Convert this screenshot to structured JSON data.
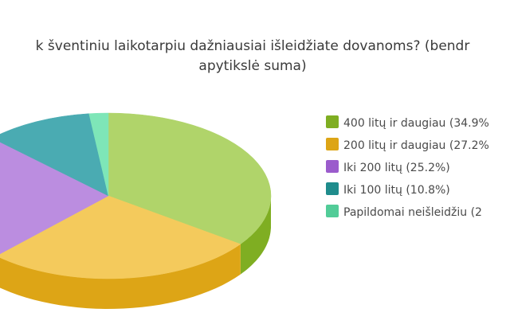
{
  "chart_data": {
    "type": "pie",
    "style": "3d",
    "title_lines": [
      "k šventiniu laikotarpiu dažniausiai išleidžiate dovanoms? (bendr",
      "apytikslė suma)"
    ],
    "legend_position": "right",
    "slices": [
      {
        "label": "400 litų ir daugiau (34.9%",
        "value": 34.9,
        "color": "#7fae22",
        "top": "#b0d46a"
      },
      {
        "label": "200 litų ir daugiau (27.2%",
        "value": 27.2,
        "color": "#dda516",
        "top": "#f4ca5c"
      },
      {
        "label": "Iki 200 litų (25.2%)",
        "value": 25.2,
        "color": "#9b5ccc",
        "top": "#bb8de0"
      },
      {
        "label": "Iki 100 litų (10.8%)",
        "value": 10.8,
        "color": "#1f8c8c",
        "top": "#4aabb2"
      },
      {
        "label": "Papildomai neišleidžiu (2",
        "value": 1.9,
        "color": "#52cc98",
        "top": "#7ee6b8"
      }
    ]
  }
}
